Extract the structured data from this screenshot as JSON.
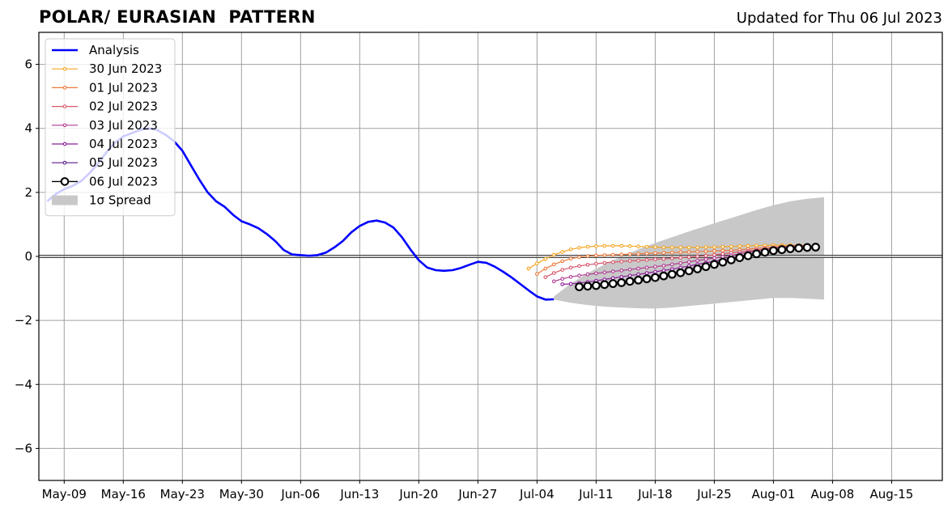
{
  "chart_data": {
    "type": "line",
    "title": "POLAR/ EURASIAN  PATTERN",
    "subtitle": "Updated for Thu 06 Jul 2023",
    "xlabel": "",
    "ylabel": "",
    "x_axis": {
      "type": "date",
      "range": [
        "2023-05-06",
        "2023-08-21"
      ],
      "ticks": [
        {
          "date": "2023-05-09",
          "label": "May-09"
        },
        {
          "date": "2023-05-16",
          "label": "May-16"
        },
        {
          "date": "2023-05-23",
          "label": "May-23"
        },
        {
          "date": "2023-05-30",
          "label": "May-30"
        },
        {
          "date": "2023-06-06",
          "label": "Jun-06"
        },
        {
          "date": "2023-06-13",
          "label": "Jun-13"
        },
        {
          "date": "2023-06-20",
          "label": "Jun-20"
        },
        {
          "date": "2023-06-27",
          "label": "Jun-27"
        },
        {
          "date": "2023-07-04",
          "label": "Jul-04"
        },
        {
          "date": "2023-07-11",
          "label": "Jul-11"
        },
        {
          "date": "2023-07-18",
          "label": "Jul-18"
        },
        {
          "date": "2023-07-25",
          "label": "Jul-25"
        },
        {
          "date": "2023-08-01",
          "label": "Aug-01"
        },
        {
          "date": "2023-08-08",
          "label": "Aug-08"
        },
        {
          "date": "2023-08-15",
          "label": "Aug-15"
        }
      ]
    },
    "y_axis": {
      "range": [
        -7,
        7
      ],
      "ticks": [
        {
          "value": 6,
          "label": "6"
        },
        {
          "value": 4,
          "label": "4"
        },
        {
          "value": 2,
          "label": "2"
        },
        {
          "value": 0,
          "label": "0"
        },
        {
          "value": -2,
          "label": "−2"
        },
        {
          "value": -4,
          "label": "−4"
        },
        {
          "value": -6,
          "label": "−6"
        }
      ]
    },
    "grid": true,
    "zero_line": true,
    "legend_position": "upper-left",
    "analysis": {
      "name": "Analysis",
      "color": "#0000ff",
      "points": [
        [
          "2023-05-07",
          1.72
        ],
        [
          "2023-05-08",
          1.95
        ],
        [
          "2023-05-09",
          2.1
        ],
        [
          "2023-05-10",
          2.2
        ],
        [
          "2023-05-11",
          2.35
        ],
        [
          "2023-05-12",
          2.6
        ],
        [
          "2023-05-13",
          2.9
        ],
        [
          "2023-05-14",
          3.25
        ],
        [
          "2023-05-15",
          3.55
        ],
        [
          "2023-05-16",
          3.75
        ],
        [
          "2023-05-17",
          3.85
        ],
        [
          "2023-05-18",
          3.95
        ],
        [
          "2023-05-19",
          4.0
        ],
        [
          "2023-05-20",
          3.95
        ],
        [
          "2023-05-21",
          3.8
        ],
        [
          "2023-05-22",
          3.6
        ],
        [
          "2023-05-23",
          3.3
        ],
        [
          "2023-05-24",
          2.85
        ],
        [
          "2023-05-25",
          2.4
        ],
        [
          "2023-05-26",
          2.0
        ],
        [
          "2023-05-27",
          1.72
        ],
        [
          "2023-05-28",
          1.55
        ],
        [
          "2023-05-29",
          1.3
        ],
        [
          "2023-05-30",
          1.1
        ],
        [
          "2023-05-31",
          1.0
        ],
        [
          "2023-06-01",
          0.88
        ],
        [
          "2023-06-02",
          0.7
        ],
        [
          "2023-06-03",
          0.48
        ],
        [
          "2023-06-04",
          0.2
        ],
        [
          "2023-06-05",
          0.06
        ],
        [
          "2023-06-06",
          0.04
        ],
        [
          "2023-06-07",
          0.02
        ],
        [
          "2023-06-08",
          0.04
        ],
        [
          "2023-06-09",
          0.12
        ],
        [
          "2023-06-10",
          0.28
        ],
        [
          "2023-06-11",
          0.48
        ],
        [
          "2023-06-12",
          0.75
        ],
        [
          "2023-06-13",
          0.95
        ],
        [
          "2023-06-14",
          1.08
        ],
        [
          "2023-06-15",
          1.12
        ],
        [
          "2023-06-16",
          1.06
        ],
        [
          "2023-06-17",
          0.9
        ],
        [
          "2023-06-18",
          0.6
        ],
        [
          "2023-06-19",
          0.22
        ],
        [
          "2023-06-20",
          -0.12
        ],
        [
          "2023-06-21",
          -0.35
        ],
        [
          "2023-06-22",
          -0.43
        ],
        [
          "2023-06-23",
          -0.45
        ],
        [
          "2023-06-24",
          -0.43
        ],
        [
          "2023-06-25",
          -0.36
        ],
        [
          "2023-06-26",
          -0.26
        ],
        [
          "2023-06-27",
          -0.17
        ],
        [
          "2023-06-28",
          -0.2
        ],
        [
          "2023-06-29",
          -0.32
        ],
        [
          "2023-06-30",
          -0.48
        ],
        [
          "2023-07-01",
          -0.66
        ],
        [
          "2023-07-02",
          -0.86
        ],
        [
          "2023-07-03",
          -1.06
        ],
        [
          "2023-07-04",
          -1.25
        ],
        [
          "2023-07-05",
          -1.35
        ],
        [
          "2023-07-06",
          -1.34
        ]
      ]
    },
    "spread": {
      "name": "1σ Spread",
      "color": "#c8c8c8",
      "points": [
        [
          "2023-07-06",
          -1.25,
          -1.35
        ],
        [
          "2023-07-08",
          -0.85,
          -1.45
        ],
        [
          "2023-07-10",
          -0.52,
          -1.52
        ],
        [
          "2023-07-12",
          -0.25,
          -1.57
        ],
        [
          "2023-07-14",
          0.0,
          -1.6
        ],
        [
          "2023-07-16",
          0.22,
          -1.62
        ],
        [
          "2023-07-18",
          0.42,
          -1.63
        ],
        [
          "2023-07-20",
          0.6,
          -1.6
        ],
        [
          "2023-07-22",
          0.78,
          -1.55
        ],
        [
          "2023-07-24",
          0.95,
          -1.5
        ],
        [
          "2023-07-26",
          1.12,
          -1.45
        ],
        [
          "2023-07-28",
          1.28,
          -1.4
        ],
        [
          "2023-07-30",
          1.45,
          -1.35
        ],
        [
          "2023-08-01",
          1.6,
          -1.3
        ],
        [
          "2023-08-03",
          1.72,
          -1.3
        ],
        [
          "2023-08-05",
          1.8,
          -1.32
        ],
        [
          "2023-08-07",
          1.85,
          -1.35
        ]
      ]
    },
    "forecasts": [
      {
        "name": "30 Jun 2023",
        "color": "#f5a623",
        "start": "2023-07-03",
        "values": [
          -0.38,
          -0.22,
          -0.08,
          0.05,
          0.14,
          0.22,
          0.27,
          0.3,
          0.32,
          0.33,
          0.33,
          0.33,
          0.32,
          0.31,
          0.3,
          0.29,
          0.28,
          0.28,
          0.28,
          0.28,
          0.28,
          0.29,
          0.29,
          0.3,
          0.31,
          0.32,
          0.33,
          0.34,
          0.34,
          0.35,
          0.35,
          0.35,
          0.35,
          0.35
        ]
      },
      {
        "name": "01 Jul 2023",
        "color": "#ec7a3b",
        "start": "2023-07-04",
        "values": [
          -0.55,
          -0.38,
          -0.25,
          -0.15,
          -0.07,
          -0.02,
          0.01,
          0.03,
          0.04,
          0.05,
          0.06,
          0.07,
          0.08,
          0.09,
          0.1,
          0.11,
          0.12,
          0.13,
          0.14,
          0.15,
          0.16,
          0.17,
          0.18,
          0.19,
          0.21,
          0.23,
          0.25,
          0.27,
          0.29,
          0.31,
          0.32,
          0.33,
          0.34
        ]
      },
      {
        "name": "02 Jul 2023",
        "color": "#d8576b",
        "start": "2023-07-05",
        "values": [
          -0.65,
          -0.52,
          -0.42,
          -0.35,
          -0.3,
          -0.26,
          -0.23,
          -0.2,
          -0.18,
          -0.16,
          -0.14,
          -0.13,
          -0.11,
          -0.09,
          -0.08,
          -0.06,
          -0.04,
          -0.02,
          0.0,
          0.02,
          0.05,
          0.08,
          0.11,
          0.14,
          0.17,
          0.2,
          0.23,
          0.26,
          0.29,
          0.31,
          0.33,
          0.34
        ]
      },
      {
        "name": "03 Jul 2023",
        "color": "#b13a8f",
        "start": "2023-07-06",
        "values": [
          -0.78,
          -0.7,
          -0.64,
          -0.6,
          -0.56,
          -0.53,
          -0.5,
          -0.47,
          -0.44,
          -0.41,
          -0.38,
          -0.35,
          -0.32,
          -0.29,
          -0.25,
          -0.21,
          -0.17,
          -0.13,
          -0.09,
          -0.05,
          -0.01,
          0.03,
          0.08,
          0.13,
          0.18,
          0.22,
          0.26,
          0.29,
          0.32,
          0.34
        ]
      },
      {
        "name": "04 Jul 2023",
        "color": "#8a1a9b",
        "start": "2023-07-07",
        "values": [
          -0.87,
          -0.86,
          -0.83,
          -0.8,
          -0.76,
          -0.72,
          -0.68,
          -0.64,
          -0.6,
          -0.56,
          -0.52,
          -0.48,
          -0.44,
          -0.4,
          -0.35,
          -0.3,
          -0.25,
          -0.2,
          -0.15,
          -0.1,
          -0.05,
          0.0,
          0.05,
          0.1,
          0.15,
          0.19,
          0.23,
          0.27,
          0.3
        ]
      },
      {
        "name": "05 Jul 2023",
        "color": "#5c1a8e",
        "start": "2023-07-09",
        "values": [
          -0.93,
          -0.9,
          -0.88,
          -0.85,
          -0.82,
          -0.78,
          -0.74,
          -0.7,
          -0.66,
          -0.61,
          -0.56,
          -0.51,
          -0.46,
          -0.41,
          -0.35,
          -0.29,
          -0.23,
          -0.17,
          -0.11,
          -0.05,
          0.01,
          0.06,
          0.11,
          0.16,
          0.2,
          0.24,
          0.27
        ]
      },
      {
        "name": "06 Jul 2023",
        "color": "#000000",
        "start": "2023-07-09",
        "markers": "hollow",
        "values": [
          -0.95,
          -0.93,
          -0.91,
          -0.88,
          -0.85,
          -0.82,
          -0.78,
          -0.74,
          -0.7,
          -0.66,
          -0.61,
          -0.56,
          -0.51,
          -0.45,
          -0.39,
          -0.32,
          -0.25,
          -0.18,
          -0.11,
          -0.04,
          0.02,
          0.08,
          0.13,
          0.18,
          0.21,
          0.24,
          0.26,
          0.28,
          0.29
        ]
      }
    ]
  }
}
